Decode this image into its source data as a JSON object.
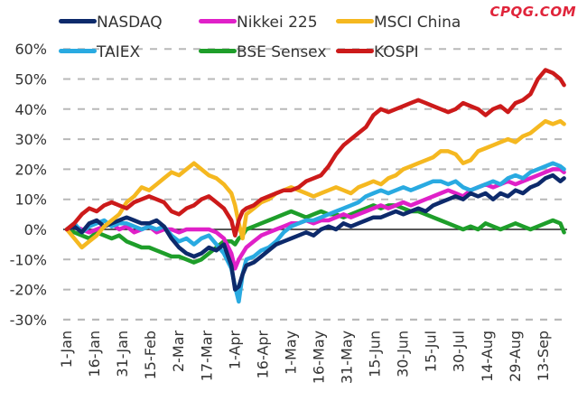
{
  "chart_data": {
    "type": "line",
    "title": "",
    "xlabel": "",
    "ylabel": "",
    "ylim": [
      -30,
      60
    ],
    "y_ticks": [
      "60%",
      "50%",
      "40%",
      "30%",
      "20%",
      "10%",
      "0%",
      "-10%",
      "-20%",
      "-30%"
    ],
    "y_tick_values": [
      60,
      50,
      40,
      30,
      20,
      10,
      0,
      -10,
      -20,
      -30
    ],
    "x_ticks": [
      "1-Jan",
      "16-Jan",
      "31-Jan",
      "15-Feb",
      "2-Mar",
      "17-Mar",
      "1-Apr",
      "16-Apr",
      "1-May",
      "16-May",
      "31-May",
      "15-Jun",
      "30-Jun",
      "15-Jul",
      "30-Jul",
      "14-Aug",
      "29-Aug",
      "13-Sep"
    ],
    "x_tick_days": [
      0,
      15,
      30,
      45,
      60,
      75,
      90,
      105,
      120,
      135,
      150,
      165,
      180,
      195,
      210,
      225,
      240,
      255
    ],
    "x_unit": "day of year",
    "grid": "horizontal dashed",
    "legend_position": "top",
    "x": [
      0,
      4,
      8,
      12,
      16,
      20,
      24,
      28,
      32,
      36,
      40,
      44,
      48,
      52,
      56,
      60,
      64,
      68,
      72,
      76,
      80,
      84,
      88,
      90,
      92,
      94,
      96,
      100,
      104,
      108,
      112,
      116,
      120,
      124,
      128,
      132,
      136,
      140,
      144,
      148,
      152,
      156,
      160,
      164,
      168,
      172,
      176,
      180,
      184,
      188,
      192,
      196,
      200,
      204,
      208,
      212,
      216,
      220,
      224,
      228,
      232,
      236,
      240,
      244,
      248,
      252,
      256,
      260,
      264,
      266
    ],
    "series": [
      {
        "name": "NASDAQ",
        "color": "#0d2a6b",
        "values": [
          0,
          1,
          -1,
          2,
          3,
          1,
          2,
          3,
          4,
          3,
          2,
          2,
          3,
          1,
          -3,
          -6,
          -8,
          -9,
          -8,
          -6,
          -7,
          -5,
          -12,
          -20,
          -19,
          -15,
          -12,
          -11,
          -9,
          -7,
          -5,
          -4,
          -3,
          -2,
          -1,
          -2,
          0,
          1,
          0,
          2,
          1,
          2,
          3,
          4,
          4,
          5,
          6,
          5,
          6,
          7,
          6,
          8,
          9,
          10,
          11,
          10,
          12,
          11,
          12,
          10,
          12,
          11,
          13,
          12,
          14,
          15,
          17,
          18,
          16,
          17
        ]
      },
      {
        "name": "Nikkei 225",
        "color": "#e020c8",
        "values": [
          0,
          1,
          0,
          -1,
          0,
          1,
          2,
          0,
          1,
          -1,
          0,
          1,
          -1,
          0,
          0,
          -1,
          0,
          0,
          0,
          0,
          -1,
          -3,
          -8,
          -13,
          -10,
          -8,
          -6,
          -4,
          -2,
          -1,
          0,
          1,
          2,
          2,
          3,
          2,
          3,
          3,
          4,
          5,
          4,
          5,
          6,
          7,
          8,
          7,
          8,
          9,
          8,
          9,
          10,
          11,
          12,
          13,
          12,
          11,
          13,
          14,
          15,
          14,
          15,
          16,
          15,
          16,
          17,
          18,
          19,
          20,
          20,
          19
        ]
      },
      {
        "name": "MSCI China",
        "color": "#f5b820",
        "values": [
          0,
          -3,
          -6,
          -4,
          -2,
          1,
          3,
          5,
          9,
          11,
          14,
          13,
          15,
          17,
          19,
          18,
          20,
          22,
          20,
          18,
          17,
          15,
          12,
          8,
          2,
          -3,
          5,
          7,
          9,
          10,
          12,
          13,
          14,
          13,
          12,
          11,
          12,
          13,
          14,
          13,
          12,
          14,
          15,
          16,
          15,
          17,
          18,
          20,
          21,
          22,
          23,
          24,
          26,
          26,
          25,
          22,
          23,
          26,
          27,
          28,
          29,
          30,
          29,
          31,
          32,
          34,
          36,
          35,
          36,
          35
        ]
      },
      {
        "name": "TAIEX",
        "color": "#29aae1",
        "values": [
          0,
          2,
          -1,
          1,
          2,
          3,
          1,
          2,
          2,
          1,
          0,
          1,
          0,
          1,
          -2,
          -4,
          -3,
          -5,
          -3,
          -2,
          -5,
          -8,
          -13,
          -19,
          -24,
          -15,
          -10,
          -9,
          -7,
          -6,
          -4,
          -1,
          1,
          2,
          3,
          3,
          4,
          5,
          6,
          7,
          8,
          9,
          11,
          12,
          13,
          12,
          13,
          14,
          13,
          14,
          15,
          16,
          16,
          15,
          16,
          14,
          13,
          14,
          15,
          16,
          15,
          17,
          18,
          17,
          19,
          20,
          21,
          22,
          21,
          20
        ]
      },
      {
        "name": "BSE Sensex",
        "color": "#1e9e2a",
        "values": [
          0,
          -1,
          -2,
          -3,
          -1,
          -2,
          -3,
          -2,
          -4,
          -5,
          -6,
          -6,
          -7,
          -8,
          -9,
          -9,
          -10,
          -11,
          -10,
          -8,
          -6,
          -4,
          -4,
          -5,
          -3,
          -2,
          0,
          1,
          2,
          3,
          4,
          5,
          6,
          5,
          4,
          5,
          6,
          5,
          5,
          4,
          5,
          6,
          7,
          8,
          7,
          8,
          8,
          7,
          6,
          6,
          5,
          4,
          3,
          2,
          1,
          0,
          1,
          0,
          2,
          1,
          0,
          1,
          2,
          1,
          0,
          1,
          2,
          3,
          2,
          -1
        ]
      },
      {
        "name": "KOSPI",
        "color": "#cc1a1a",
        "values": [
          0,
          2,
          5,
          7,
          6,
          8,
          9,
          8,
          7,
          9,
          10,
          11,
          10,
          9,
          6,
          5,
          7,
          8,
          10,
          11,
          9,
          7,
          3,
          -2,
          3,
          6,
          7,
          8,
          10,
          11,
          12,
          13,
          13,
          14,
          16,
          17,
          18,
          21,
          25,
          28,
          30,
          32,
          34,
          38,
          40,
          39,
          40,
          41,
          42,
          43,
          42,
          41,
          40,
          39,
          40,
          42,
          41,
          40,
          38,
          40,
          41,
          39,
          42,
          43,
          45,
          50,
          53,
          52,
          50,
          48
        ]
      }
    ]
  },
  "watermark": "CPQG.COM"
}
